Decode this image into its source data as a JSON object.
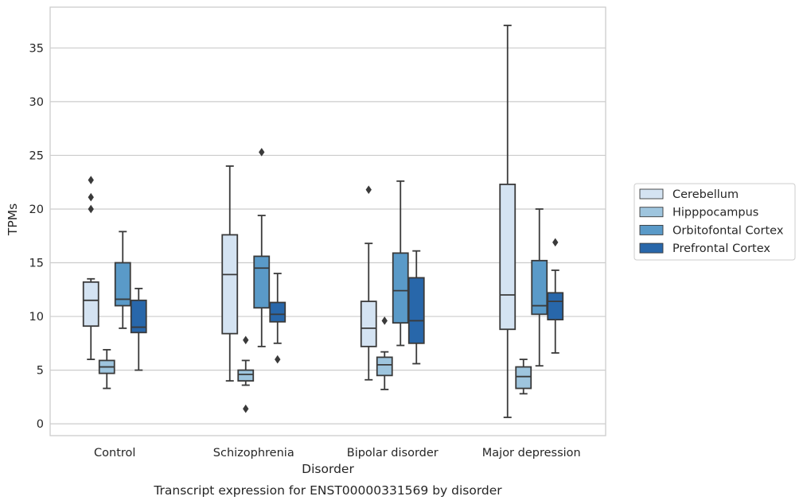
{
  "chart_data": {
    "type": "box",
    "title": "",
    "caption": "Transcript expression for ENST00000331569 by disorder",
    "xlabel": "Disorder",
    "ylabel": "TPMs",
    "ylim": [
      -1.1,
      38.8
    ],
    "yticks": [
      0,
      5,
      10,
      15,
      20,
      25,
      30,
      35
    ],
    "grid": "horizontal",
    "legend_position": "right",
    "categories": [
      "Control",
      "Schizophrenia",
      "Bipolar disorder",
      "Major depression"
    ],
    "series": [
      {
        "name": "Cerebellum",
        "color": "#d4e3f2",
        "boxes": [
          {
            "whislo": 6.0,
            "q1": 9.1,
            "med": 11.5,
            "q3": 13.2,
            "whishi": 13.5,
            "fliers": [
              20.0,
              21.1,
              22.7
            ]
          },
          {
            "whislo": 4.0,
            "q1": 8.4,
            "med": 13.9,
            "q3": 17.6,
            "whishi": 24.0,
            "fliers": []
          },
          {
            "whislo": 4.1,
            "q1": 7.2,
            "med": 8.9,
            "q3": 11.4,
            "whishi": 16.8,
            "fliers": [
              21.8
            ]
          },
          {
            "whislo": 0.6,
            "q1": 8.8,
            "med": 12.0,
            "q3": 22.3,
            "whishi": 37.1,
            "fliers": []
          }
        ]
      },
      {
        "name": "Hipppocampus",
        "color": "#9ec5de",
        "boxes": [
          {
            "whislo": 3.3,
            "q1": 4.7,
            "med": 5.3,
            "q3": 5.9,
            "whishi": 6.9,
            "fliers": []
          },
          {
            "whislo": 3.6,
            "q1": 4.0,
            "med": 4.6,
            "q3": 5.0,
            "whishi": 5.9,
            "fliers": [
              1.4,
              7.8
            ]
          },
          {
            "whislo": 3.2,
            "q1": 4.5,
            "med": 5.5,
            "q3": 6.2,
            "whishi": 6.7,
            "fliers": [
              9.6
            ]
          },
          {
            "whislo": 2.8,
            "q1": 3.3,
            "med": 4.4,
            "q3": 5.3,
            "whishi": 6.0,
            "fliers": []
          }
        ]
      },
      {
        "name": "Orbitofontal Cortex",
        "color": "#5a9ac8",
        "boxes": [
          {
            "whislo": 8.9,
            "q1": 11.0,
            "med": 11.6,
            "q3": 15.0,
            "whishi": 17.9,
            "fliers": []
          },
          {
            "whislo": 7.2,
            "q1": 10.8,
            "med": 14.5,
            "q3": 15.6,
            "whishi": 19.4,
            "fliers": [
              25.3
            ]
          },
          {
            "whislo": 7.3,
            "q1": 9.4,
            "med": 12.4,
            "q3": 15.9,
            "whishi": 22.6,
            "fliers": []
          },
          {
            "whislo": 5.4,
            "q1": 10.2,
            "med": 11.0,
            "q3": 15.2,
            "whishi": 20.0,
            "fliers": []
          }
        ]
      },
      {
        "name": "Prefrontal Cortex",
        "color": "#2867aa",
        "boxes": [
          {
            "whislo": 5.0,
            "q1": 8.5,
            "med": 9.0,
            "q3": 11.5,
            "whishi": 12.6,
            "fliers": []
          },
          {
            "whislo": 7.5,
            "q1": 9.5,
            "med": 10.2,
            "q3": 11.3,
            "whishi": 14.0,
            "fliers": [
              6.0
            ]
          },
          {
            "whislo": 5.6,
            "q1": 7.5,
            "med": 9.6,
            "q3": 13.6,
            "whishi": 16.1,
            "fliers": []
          },
          {
            "whislo": 6.6,
            "q1": 9.7,
            "med": 11.4,
            "q3": 12.2,
            "whishi": 14.3,
            "fliers": [
              16.9
            ]
          }
        ]
      }
    ]
  },
  "colors": {
    "edge": "#3a3a3a",
    "grid": "#cccccc",
    "frame": "#cccccc",
    "text": "#262626"
  }
}
